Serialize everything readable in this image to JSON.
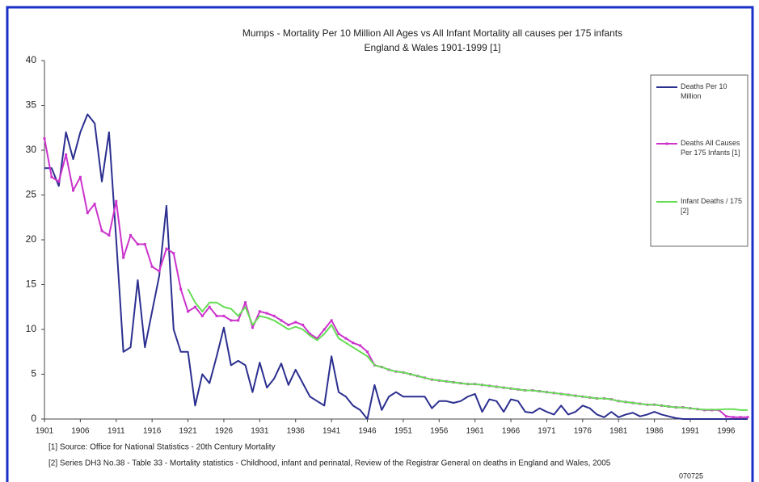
{
  "chart_data": {
    "type": "line",
    "title": "Mumps - Mortality Per 10 Million All Ages vs All Infant Mortality all causes per 175 infants",
    "subtitle": "England & Wales 1901-1999 [1]",
    "notes": [
      "[1] Source: Office for National Statistics - 20th Century Mortality",
      "[2] Series DH3 No.38 - Table 33 - Mortality statistics - Childhood, infant and perinatal, Review of the Registrar General on deaths in England and Wales, 2005",
      "070725"
    ],
    "x": [
      1901,
      1902,
      1903,
      1904,
      1905,
      1906,
      1907,
      1908,
      1909,
      1910,
      1911,
      1912,
      1913,
      1914,
      1915,
      1916,
      1917,
      1918,
      1919,
      1920,
      1921,
      1922,
      1923,
      1924,
      1925,
      1926,
      1927,
      1928,
      1929,
      1930,
      1931,
      1932,
      1933,
      1934,
      1935,
      1936,
      1937,
      1938,
      1939,
      1940,
      1941,
      1942,
      1943,
      1944,
      1945,
      1946,
      1947,
      1948,
      1949,
      1950,
      1951,
      1952,
      1953,
      1954,
      1955,
      1956,
      1957,
      1958,
      1959,
      1960,
      1961,
      1962,
      1963,
      1964,
      1965,
      1966,
      1967,
      1968,
      1969,
      1970,
      1971,
      1972,
      1973,
      1974,
      1975,
      1976,
      1977,
      1978,
      1979,
      1980,
      1981,
      1982,
      1983,
      1984,
      1985,
      1986,
      1987,
      1988,
      1989,
      1990,
      1991,
      1992,
      1993,
      1994,
      1995,
      1996,
      1997,
      1998,
      1999
    ],
    "xlim": [
      1901,
      1999
    ],
    "xticks": [
      1901,
      1906,
      1911,
      1916,
      1921,
      1926,
      1931,
      1936,
      1941,
      1946,
      1951,
      1956,
      1961,
      1966,
      1971,
      1976,
      1981,
      1986,
      1991,
      1996
    ],
    "ylim": [
      0,
      40
    ],
    "yticks": [
      0,
      5,
      10,
      15,
      20,
      25,
      30,
      35,
      40
    ],
    "legend": "right",
    "series": [
      {
        "name": "Deaths Per 10 Million",
        "color": "#2b2f8f",
        "marker": false,
        "values": [
          28,
          28,
          26,
          32,
          29,
          32,
          34,
          33,
          26.5,
          32,
          20,
          7.5,
          8,
          15.5,
          8,
          12,
          16,
          23.8,
          10,
          7.5,
          7.5,
          1.5,
          5,
          4,
          7,
          10.2,
          6,
          6.5,
          6,
          3,
          6.3,
          3.5,
          4.5,
          6.2,
          3.8,
          5.5,
          4,
          2.5,
          2,
          1.5,
          7,
          3,
          2.5,
          1.5,
          1,
          0,
          3.8,
          1,
          2.5,
          3,
          2.5,
          2.5,
          2.5,
          2.5,
          1.2,
          2,
          2,
          1.8,
          2,
          2.5,
          2.8,
          0.8,
          2.2,
          2,
          0.8,
          2.2,
          2,
          0.8,
          0.7,
          1.2,
          0.8,
          0.5,
          1.5,
          0.5,
          0.8,
          1.5,
          1.2,
          0.5,
          0.2,
          0.8,
          0.2,
          0.5,
          0.7,
          0.3,
          0.5,
          0.8,
          0.5,
          0.3,
          0.1,
          0,
          0,
          0,
          0,
          0,
          0,
          0,
          0,
          0,
          0
        ]
      },
      {
        "name": "Deaths All Causes Per 175 Infants [1]",
        "color": "#cc33cc",
        "marker": true,
        "values": [
          31.3,
          27,
          26.5,
          29.5,
          25.5,
          27,
          23,
          24,
          21,
          20.5,
          24.3,
          18,
          20.5,
          19.5,
          19.5,
          17,
          16.5,
          19,
          18.5,
          14.5,
          12,
          12.5,
          11.5,
          12.5,
          11.5,
          11.5,
          11,
          11,
          13,
          10.2,
          12,
          11.8,
          11.5,
          11,
          10.5,
          10.8,
          10.5,
          9.5,
          9,
          10,
          11,
          9.5,
          9,
          8.5,
          8.2,
          7.5,
          6,
          5.8,
          5.5,
          5.3,
          5.2,
          5,
          4.8,
          4.6,
          4.4,
          4.3,
          4.2,
          4.1,
          4,
          3.9,
          3.9,
          3.8,
          3.7,
          3.6,
          3.5,
          3.4,
          3.3,
          3.2,
          3.2,
          3.1,
          3,
          2.9,
          2.8,
          2.7,
          2.6,
          2.5,
          2.4,
          2.3,
          2.3,
          2.2,
          2,
          1.9,
          1.8,
          1.7,
          1.6,
          1.6,
          1.5,
          1.4,
          1.3,
          1.3,
          1.2,
          1.1,
          1,
          1,
          1,
          0.3,
          0.2,
          0.2,
          0.2
        ]
      },
      {
        "name": "Infant Deaths / 175 [2]",
        "color": "#66dd55",
        "marker": false,
        "values": [
          null,
          null,
          null,
          null,
          null,
          null,
          null,
          null,
          null,
          null,
          null,
          null,
          null,
          null,
          null,
          null,
          null,
          null,
          null,
          null,
          14.5,
          13,
          12,
          13,
          13,
          12.5,
          12.3,
          11.5,
          12.5,
          10.5,
          11.5,
          11.3,
          11,
          10.5,
          10,
          10.3,
          10,
          9.3,
          8.8,
          9.5,
          10.5,
          9,
          8.5,
          8,
          7.5,
          7,
          6,
          5.8,
          5.5,
          5.3,
          5.2,
          5,
          4.8,
          4.6,
          4.4,
          4.3,
          4.2,
          4.1,
          4,
          3.9,
          3.9,
          3.8,
          3.7,
          3.6,
          3.5,
          3.4,
          3.3,
          3.2,
          3.2,
          3.1,
          3,
          2.9,
          2.8,
          2.7,
          2.6,
          2.5,
          2.4,
          2.3,
          2.3,
          2.2,
          2,
          1.9,
          1.8,
          1.7,
          1.6,
          1.6,
          1.5,
          1.4,
          1.3,
          1.3,
          1.2,
          1.1,
          1.05,
          1.05,
          1.05,
          1.1,
          1.1,
          1,
          1
        ]
      }
    ]
  }
}
